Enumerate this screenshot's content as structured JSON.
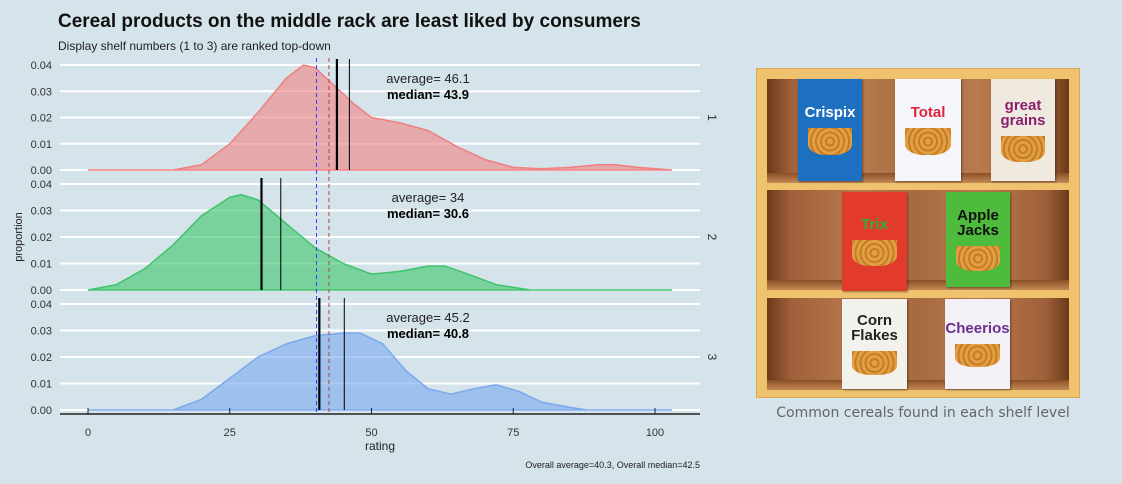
{
  "chart_data": {
    "type": "area",
    "title": "Cereal products on the middle rack are least liked by consumers",
    "subtitle": "Display shelf numbers (1 to 3) are ranked top-down",
    "xlabel": "rating",
    "ylabel": "proportion",
    "xlim": [
      -5,
      105
    ],
    "ylim": [
      0,
      0.04
    ],
    "x_ticks": [
      "0",
      "25",
      "50",
      "75",
      "100"
    ],
    "x_tick_values": [
      0,
      25,
      50,
      75,
      100
    ],
    "y_ticks": [
      "0.00",
      "0.01",
      "0.02",
      "0.03",
      "0.04"
    ],
    "y_tick_values": [
      0,
      0.01,
      0.02,
      0.03,
      0.04
    ],
    "grid": true,
    "caption": "Overall average=40.3, Overall median=42.5",
    "overall_average": 40.3,
    "overall_median": 42.5,
    "overall_average_color": "#3b3bff",
    "overall_median_color": "#b5473a",
    "panels": [
      {
        "strip": "1",
        "color": "#f08080",
        "average": 46.1,
        "median": 43.9,
        "average_label": "average= 46.1",
        "median_label": "median= 43.9",
        "x": [
          0,
          15,
          20,
          25,
          30,
          35,
          38,
          40,
          43,
          47,
          50,
          55,
          60,
          65,
          70,
          75,
          80,
          85,
          90,
          93,
          97,
          103
        ],
        "y": [
          0,
          0,
          0.002,
          0.01,
          0.022,
          0.035,
          0.04,
          0.039,
          0.033,
          0.025,
          0.02,
          0.018,
          0.015,
          0.009,
          0.004,
          0.001,
          0.0005,
          0.001,
          0.002,
          0.002,
          0.001,
          0
        ]
      },
      {
        "strip": "2",
        "color": "#3cc46a",
        "average": 34,
        "median": 30.6,
        "average_label": "average= 34",
        "median_label": "median= 30.6",
        "x": [
          0,
          5,
          10,
          15,
          20,
          25,
          27,
          30,
          35,
          40,
          45,
          50,
          55,
          60,
          63,
          67,
          72,
          78,
          103
        ],
        "y": [
          0,
          0.002,
          0.008,
          0.017,
          0.028,
          0.035,
          0.036,
          0.034,
          0.025,
          0.016,
          0.01,
          0.006,
          0.007,
          0.009,
          0.009,
          0.006,
          0.002,
          0,
          0
        ]
      },
      {
        "strip": "3",
        "color": "#7aa8ee",
        "average": 45.2,
        "median": 40.8,
        "average_label": "average= 45.2",
        "median_label": "median= 40.8",
        "x": [
          0,
          15,
          20,
          25,
          30,
          35,
          40,
          45,
          48,
          52,
          56,
          60,
          64,
          68,
          72,
          76,
          80,
          85,
          88,
          103
        ],
        "y": [
          0,
          0,
          0.004,
          0.012,
          0.02,
          0.025,
          0.028,
          0.029,
          0.029,
          0.025,
          0.015,
          0.008,
          0.006,
          0.008,
          0.0095,
          0.007,
          0.003,
          0.001,
          0,
          0
        ]
      }
    ]
  },
  "shelf": {
    "caption": "Common cereals found in each shelf level",
    "rows": [
      [
        {
          "name": "Crispix",
          "bg": "#1d6fc0",
          "fg": "#ffffff"
        },
        {
          "name": "Total",
          "bg": "#f4f6fb",
          "fg": "#e0243a"
        },
        {
          "name": "great grains",
          "bg": "#efe9e0",
          "fg": "#8a1f6e"
        }
      ],
      [
        {
          "name": "Trix",
          "bg": "#e23b2b",
          "fg": "#2fae3a"
        },
        {
          "name": "Apple Jacks",
          "bg": "#4fbb3c",
          "fg": "#111111"
        }
      ],
      [
        {
          "name": "Corn Flakes",
          "bg": "#f3f1ec",
          "fg": "#222222"
        },
        {
          "name": "Cheerios",
          "bg": "#f3f1f6",
          "fg": "#6a2f8f"
        }
      ]
    ]
  }
}
